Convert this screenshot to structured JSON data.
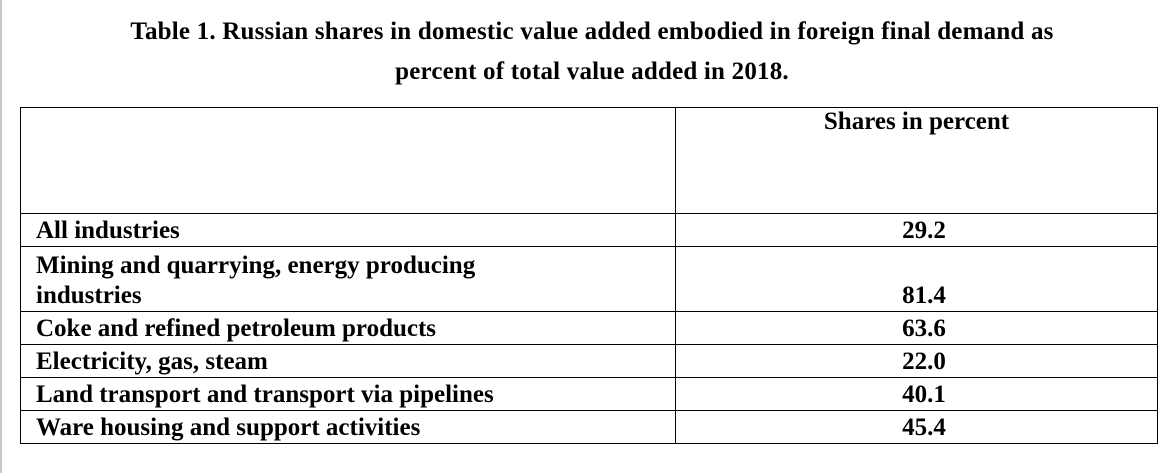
{
  "document": {
    "title_line1": "Table 1. Russian shares in domestic value added embodied in foreign final demand as",
    "title_line2": "percent of total value added in 2018."
  },
  "table": {
    "header_label": "",
    "header_value": "Shares in percent",
    "rows": [
      {
        "label": "All industries",
        "value": "29.2"
      },
      {
        "label_line1": "Mining and quarrying, energy producing",
        "label_line2": "industries",
        "value": "81.4"
      },
      {
        "label": "Coke and refined petroleum products",
        "value": "63.6"
      },
      {
        "label": "Electricity, gas, steam",
        "value": "22.0"
      },
      {
        "label": "Land transport and transport via pipelines",
        "value": "40.1"
      },
      {
        "label": "Ware housing and support activities",
        "value": "45.4"
      }
    ]
  }
}
